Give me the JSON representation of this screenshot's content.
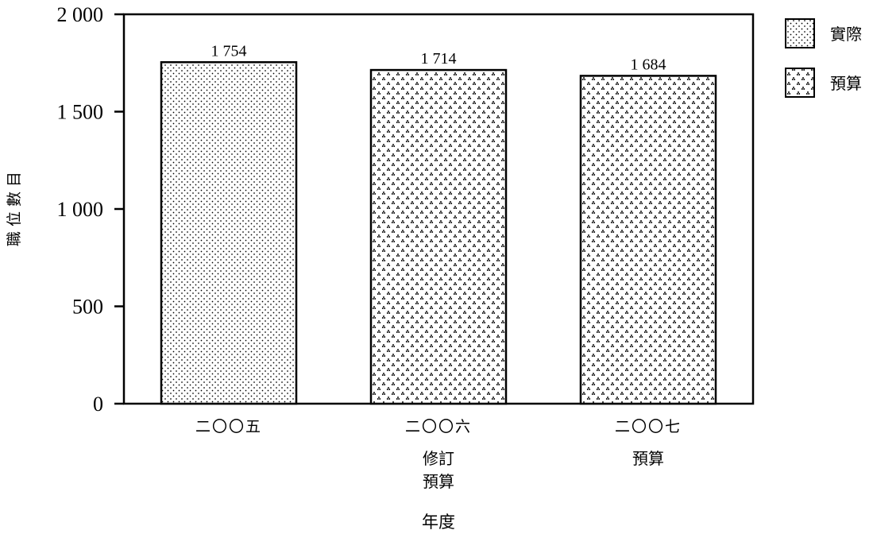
{
  "chart_data": {
    "type": "bar",
    "title": "",
    "xlabel": "年度",
    "ylabel": "職 位 數 目",
    "ylim": [
      0,
      2000
    ],
    "yticks": [
      0,
      500,
      1000,
      1500,
      2000
    ],
    "ytick_labels": [
      "0",
      "500",
      "1 000",
      "1 500",
      "2 000"
    ],
    "grid": false,
    "legend_position": "top-right, outside plot",
    "categories": [
      [
        "二〇〇五"
      ],
      [
        "二〇〇六",
        "修訂",
        "預算"
      ],
      [
        "二〇〇七",
        "預算"
      ]
    ],
    "values": [
      1754,
      1714,
      1684
    ],
    "value_labels": [
      "1 754",
      "1 714",
      "1 684"
    ],
    "bar_series": [
      "actual",
      "budget",
      "budget"
    ],
    "series": [
      {
        "key": "actual",
        "name": "實際",
        "pattern": "fine-dots"
      },
      {
        "key": "budget",
        "name": "預算",
        "pattern": "dot-triangles"
      }
    ],
    "colors": {
      "ink": "#000000",
      "bar_fill": "#ffffff",
      "dot": "#000000"
    }
  }
}
